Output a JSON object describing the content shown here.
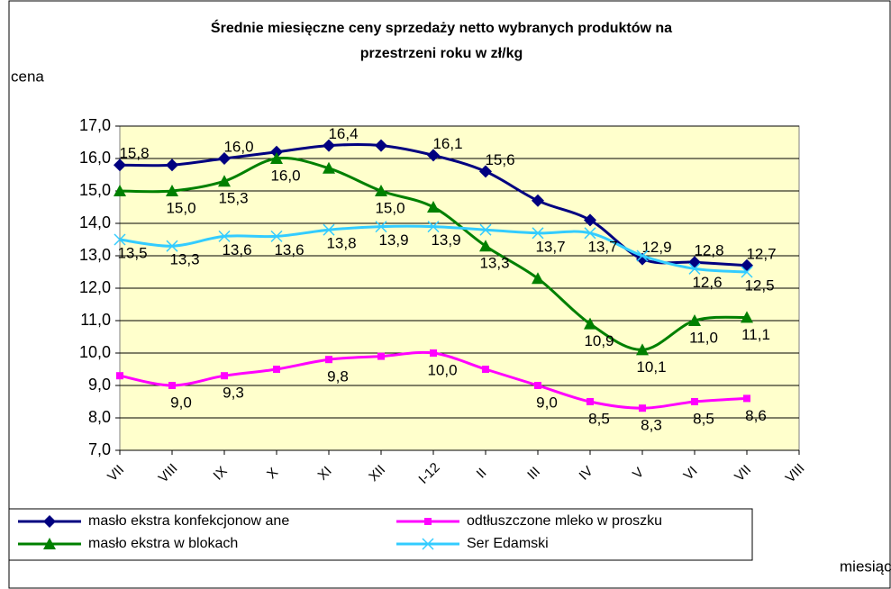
{
  "chart_data": {
    "type": "line",
    "title": [
      "Średnie miesięczne ceny sprzedaży netto  wybranych produktów na",
      "przestrzeni roku w zł/kg"
    ],
    "y_label": "cena",
    "x_label": "miesiąc",
    "categories": [
      "VII",
      "VIII",
      "IX",
      "X",
      "XI",
      "XII",
      "I-12",
      "II",
      "III",
      "IV",
      "V",
      "VI",
      "VII",
      "VIII"
    ],
    "ylim": [
      7,
      17
    ],
    "yticks": [
      {
        "value": 7,
        "label": "7,0"
      },
      {
        "value": 8,
        "label": "8,0"
      },
      {
        "value": 9,
        "label": "9,0"
      },
      {
        "value": 10,
        "label": "10,0"
      },
      {
        "value": 11,
        "label": "11,0"
      },
      {
        "value": 12,
        "label": "12,0"
      },
      {
        "value": 13,
        "label": "13,0"
      },
      {
        "value": 14,
        "label": "14,0"
      },
      {
        "value": 15,
        "label": "15,0"
      },
      {
        "value": 16,
        "label": "16,0"
      },
      {
        "value": 17,
        "label": "17,0"
      }
    ],
    "grid": true,
    "plot_background": "#ffffcc",
    "series": [
      {
        "name": "masło ekstra konfekcjonow ane",
        "color": "#000080",
        "marker": "diamond",
        "values": [
          15.8,
          15.8,
          16.0,
          16.2,
          16.4,
          16.4,
          16.1,
          15.6,
          14.7,
          14.1,
          12.9,
          12.8,
          12.7,
          null
        ],
        "value_labels": [
          "15,8",
          null,
          "16,0",
          null,
          "16,4",
          null,
          "16,1",
          "15,6",
          null,
          null,
          "12,9",
          "12,8",
          "12,7",
          null
        ]
      },
      {
        "name": "odtłuszczone mleko w  proszku",
        "color": "#ff00ff",
        "marker": "square",
        "values": [
          9.3,
          9.0,
          9.3,
          9.5,
          9.8,
          9.9,
          10.0,
          9.5,
          9.0,
          8.5,
          8.3,
          8.5,
          8.6,
          null
        ],
        "value_labels": [
          null,
          "9,0",
          "9,3",
          null,
          "9,8",
          null,
          "10,0",
          null,
          "9,0",
          "8,5",
          "8,3",
          "8,5",
          "8,6",
          null
        ]
      },
      {
        "name": "masło ekstra w  blokach",
        "color": "#008000",
        "marker": "triangle",
        "values": [
          15.0,
          15.0,
          15.3,
          16.0,
          15.7,
          15.0,
          14.5,
          13.3,
          12.3,
          10.9,
          10.1,
          11.0,
          11.1,
          null
        ],
        "value_labels": [
          null,
          "15,0",
          "15,3",
          "16,0",
          null,
          "15,0",
          null,
          "13,3",
          null,
          "10,9",
          "10,1",
          "11,0",
          "11,1",
          null
        ]
      },
      {
        "name": "Ser Edamski",
        "color": "#33ccff",
        "marker": "x",
        "values": [
          13.5,
          13.3,
          13.6,
          13.6,
          13.8,
          13.9,
          13.9,
          13.8,
          13.7,
          13.7,
          13.0,
          12.6,
          12.5,
          null
        ],
        "value_labels": [
          "13,5",
          "13,3",
          "13,6",
          "13,6",
          "13,8",
          "13,9",
          "13,9",
          null,
          "13,7",
          "13,7",
          null,
          "12,6",
          "12,5",
          null
        ]
      }
    ]
  }
}
